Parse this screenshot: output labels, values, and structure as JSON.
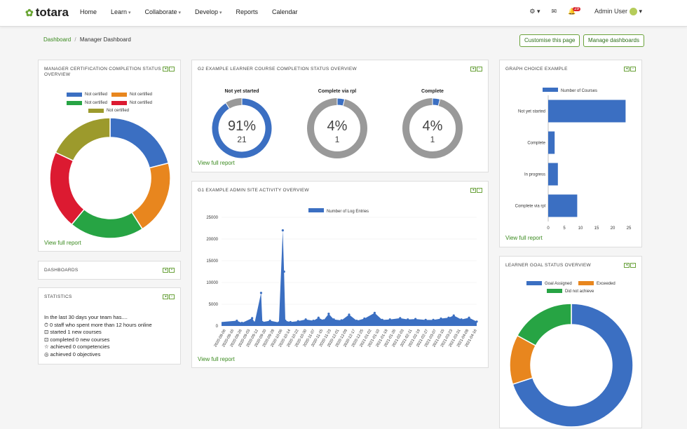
{
  "nav": {
    "logo": "totara",
    "items": [
      {
        "label": "Home",
        "caret": false
      },
      {
        "label": "Learn",
        "caret": true
      },
      {
        "label": "Collaborate",
        "caret": true
      },
      {
        "label": "Develop",
        "caret": true
      },
      {
        "label": "Reports",
        "caret": false
      },
      {
        "label": "Calendar",
        "caret": false
      }
    ],
    "notif_count": "29",
    "user": "Admin User"
  },
  "breadcrumb": {
    "root": "Dashboard",
    "sep": "/",
    "current": "Manager Dashboard"
  },
  "buttons": {
    "customise": "Customise this page",
    "manage": "Manage dashboards"
  },
  "panels": {
    "cert": {
      "title": "MANAGER CERTIFICATION COMPLETION STATUS OVERVIEW",
      "view_full": "View full report",
      "legend": [
        {
          "label": "Not certified",
          "color": "#3b6fc2"
        },
        {
          "label": "Not certified",
          "color": "#e8861e"
        },
        {
          "label": "Not certified",
          "color": "#27a444"
        },
        {
          "label": "Not certified",
          "color": "#dc1a31"
        },
        {
          "label": "Not certified",
          "color": "#9c9a2c"
        }
      ]
    },
    "dashboards": {
      "title": "DASHBOARDS"
    },
    "statistics": {
      "title": "STATISTICS",
      "intro": "In the last 30 days your team has....",
      "lines": [
        "0 staff who spent more than 12 hours online",
        "started 1 new courses",
        "completed 0 new courses",
        "achieved 0 competencies",
        "achieved 0 objectives"
      ]
    },
    "g2": {
      "title": "G2 EXAMPLE LEARNER COURSE COMPLETION STATUS OVERVIEW",
      "view_full": "View full report",
      "gauges": [
        {
          "label": "Not yet started",
          "pct": "91%",
          "count": "21",
          "fraction": 0.91,
          "color": "#3b6fc2"
        },
        {
          "label": "Complete via rpl",
          "pct": "4%",
          "count": "1",
          "fraction": 0.04,
          "color": "#3b6fc2"
        },
        {
          "label": "Complete",
          "pct": "4%",
          "count": "1",
          "fraction": 0.04,
          "color": "#3b6fc2"
        }
      ]
    },
    "g1": {
      "title": "G1 EXAMPLE ADMIN SITE ACTIVITY OVERVIEW",
      "view_full": "View full report"
    },
    "graph_choice": {
      "title": "GRAPH CHOICE EXAMPLE",
      "view_full": "View full report"
    },
    "goal": {
      "title": "LEARNER GOAL STATUS OVERVIEW"
    }
  },
  "chart_data": [
    {
      "type": "pie",
      "id": "cert",
      "categories": [
        "Not certified",
        "Not certified",
        "Not certified",
        "Not certified",
        "Not certified"
      ],
      "values": [
        21,
        20,
        20,
        21,
        18
      ],
      "colors": [
        "#3b6fc2",
        "#e8861e",
        "#27a444",
        "#dc1a31",
        "#9c9a2c"
      ],
      "donut": true
    },
    {
      "type": "line",
      "id": "activity",
      "series": [
        {
          "name": "Number of Log Entries",
          "color": "#3b6fc2"
        }
      ],
      "ylim": [
        0,
        25000
      ],
      "yticks": [
        "0",
        "5000",
        "10000",
        "15000",
        "20000",
        "25000"
      ],
      "xticks": [
        "2020-08-06",
        "2020-08-16",
        "2020-08-26",
        "2020-09-03",
        "2020-09-12",
        "2020-09-20",
        "2020-09-28",
        "2020-10-06",
        "2020-10-14",
        "2020-10-22",
        "2020-10-30",
        "2020-11-07",
        "2020-11-15",
        "2020-11-23",
        "2020-12-01",
        "2020-12-09",
        "2020-12-17",
        "2020-12-25",
        "2021-01-02",
        "2021-01-10",
        "2021-01-18",
        "2021-01-26",
        "2021-02-03",
        "2021-02-11",
        "2021-02-19",
        "2021-02-27",
        "2021-03-07",
        "2021-03-15",
        "2021-03-23",
        "2021-03-31",
        "2021-04-08",
        "2021-04-16"
      ],
      "points": [
        [
          0.06,
          1200
        ],
        [
          0.08,
          700
        ],
        [
          0.12,
          1800
        ],
        [
          0.13,
          800
        ],
        [
          0.155,
          7600
        ],
        [
          0.16,
          900
        ],
        [
          0.19,
          1200
        ],
        [
          0.225,
          800
        ],
        [
          0.24,
          22000
        ],
        [
          0.245,
          12500
        ],
        [
          0.25,
          1200
        ],
        [
          0.27,
          900
        ],
        [
          0.3,
          1100
        ],
        [
          0.33,
          1500
        ],
        [
          0.36,
          1200
        ],
        [
          0.38,
          1900
        ],
        [
          0.4,
          1300
        ],
        [
          0.42,
          2800
        ],
        [
          0.44,
          1500
        ],
        [
          0.47,
          1300
        ],
        [
          0.5,
          2600
        ],
        [
          0.53,
          1200
        ],
        [
          0.56,
          1700
        ],
        [
          0.6,
          3000
        ],
        [
          0.63,
          1400
        ],
        [
          0.66,
          1500
        ],
        [
          0.7,
          1800
        ],
        [
          0.73,
          1500
        ],
        [
          0.76,
          1600
        ],
        [
          0.8,
          1400
        ],
        [
          0.83,
          1400
        ],
        [
          0.86,
          1700
        ],
        [
          0.89,
          1900
        ],
        [
          0.91,
          2400
        ],
        [
          0.94,
          1500
        ],
        [
          0.97,
          1900
        ],
        [
          1.0,
          1000
        ]
      ]
    },
    {
      "type": "bar",
      "id": "graph_choice",
      "orientation": "horizontal",
      "series": [
        {
          "name": "Number of Courses",
          "color": "#3b6fc2"
        }
      ],
      "categories": [
        "Not yet started",
        "Complete",
        "In progress",
        "Complete via rpl"
      ],
      "values": [
        24,
        2,
        3,
        9
      ],
      "xlim": [
        0,
        25
      ],
      "xticks": [
        "0",
        "5",
        "10",
        "15",
        "20",
        "25"
      ]
    },
    {
      "type": "pie",
      "id": "goal",
      "categories": [
        "Goal Assigned",
        "Exceeded",
        "Did not achieve"
      ],
      "values": [
        70,
        13,
        17
      ],
      "colors": [
        "#3b6fc2",
        "#e8861e",
        "#27a444"
      ],
      "donut": true
    }
  ]
}
